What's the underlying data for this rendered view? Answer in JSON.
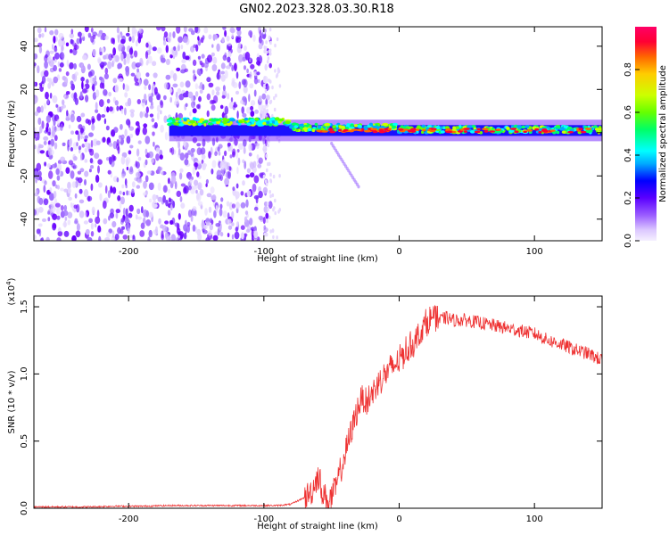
{
  "figure": {
    "title": "GN02.2023.328.03.30.R18"
  },
  "colors": {
    "snr_line": "#ee3333",
    "scatter_colors": [
      "#e6d9ff",
      "#cdb3ff",
      "#a070ff",
      "#7a2dff",
      "#6a00ff"
    ],
    "colormap": [
      "#f5f0ff",
      "#dcc8ff",
      "#9a5cff",
      "#5a00ff",
      "#0000ff",
      "#00aaff",
      "#00ffff",
      "#00ff66",
      "#66ff00",
      "#ccff00",
      "#ffcc00",
      "#ff6600",
      "#ff0033",
      "#ff0066"
    ]
  },
  "chart_data": [
    {
      "type": "heatmap",
      "title": "",
      "xlabel": "Height of straight line (km)",
      "ylabel": "Frequency (Hz)",
      "xlim": [
        -270,
        150
      ],
      "ylim": [
        -50,
        49
      ],
      "xticks": [
        -200,
        -100,
        0,
        100
      ],
      "xtick_labels": [
        "-200",
        "-100",
        "0",
        "100"
      ],
      "yticks": [
        -40,
        -20,
        0,
        20,
        40
      ],
      "ytick_labels": [
        "-40",
        "-20",
        "0",
        "20",
        "40"
      ],
      "colorbar": {
        "label": "Normalized spectral amplitude",
        "range": [
          0,
          1
        ],
        "ticks": [
          0.0,
          0.2,
          0.4,
          0.6,
          0.8
        ],
        "tick_labels": [
          "0.0",
          "0.2",
          "0.4",
          "0.6",
          "0.8"
        ]
      },
      "description_features": {
        "noise_region_x": [
          -270,
          -95
        ],
        "signal_band_x": [
          -170,
          150
        ],
        "signal_band_center_freq": 1,
        "faint_streak": {
          "x": [
            -50,
            -30
          ],
          "freq": [
            -5,
            -25
          ]
        }
      }
    },
    {
      "type": "line",
      "title": "",
      "xlabel": "Height of straight line (km)",
      "ylabel": "SNR (10 * v/v)",
      "y_multiplier": "(x10^4)",
      "xlim": [
        -270,
        150
      ],
      "ylim": [
        0,
        1.58
      ],
      "xticks": [
        -200,
        -100,
        0,
        100
      ],
      "xtick_labels": [
        "-200",
        "-100",
        "0",
        "100"
      ],
      "yticks": [
        0.0,
        0.5,
        1.0,
        1.5
      ],
      "ytick_labels": [
        "0.0",
        "0.5",
        "1.0",
        "1.5"
      ],
      "series": [
        {
          "x": [
            -270,
            -250,
            -230,
            -210,
            -190,
            -170,
            -150,
            -130,
            -110,
            -100,
            -90,
            -80,
            -70,
            -65,
            -60,
            -56,
            -52,
            -48,
            -44,
            -40,
            -36,
            -32,
            -28,
            -24,
            -20,
            -15,
            -10,
            -5,
            0,
            5,
            10,
            15,
            20,
            25,
            30,
            35,
            40,
            50,
            60,
            70,
            80,
            90,
            100,
            110,
            120,
            130,
            140,
            150
          ],
          "values": [
            0.01,
            0.01,
            0.01,
            0.015,
            0.015,
            0.02,
            0.02,
            0.02,
            0.02,
            0.02,
            0.02,
            0.03,
            0.08,
            0.12,
            0.25,
            0.1,
            0.05,
            0.12,
            0.25,
            0.4,
            0.55,
            0.7,
            0.82,
            0.8,
            0.85,
            0.95,
            1.0,
            1.05,
            1.1,
            1.18,
            1.22,
            1.3,
            1.38,
            1.42,
            1.4,
            1.42,
            1.4,
            1.4,
            1.38,
            1.36,
            1.34,
            1.32,
            1.3,
            1.25,
            1.22,
            1.18,
            1.15,
            1.1
          ]
        }
      ]
    }
  ]
}
